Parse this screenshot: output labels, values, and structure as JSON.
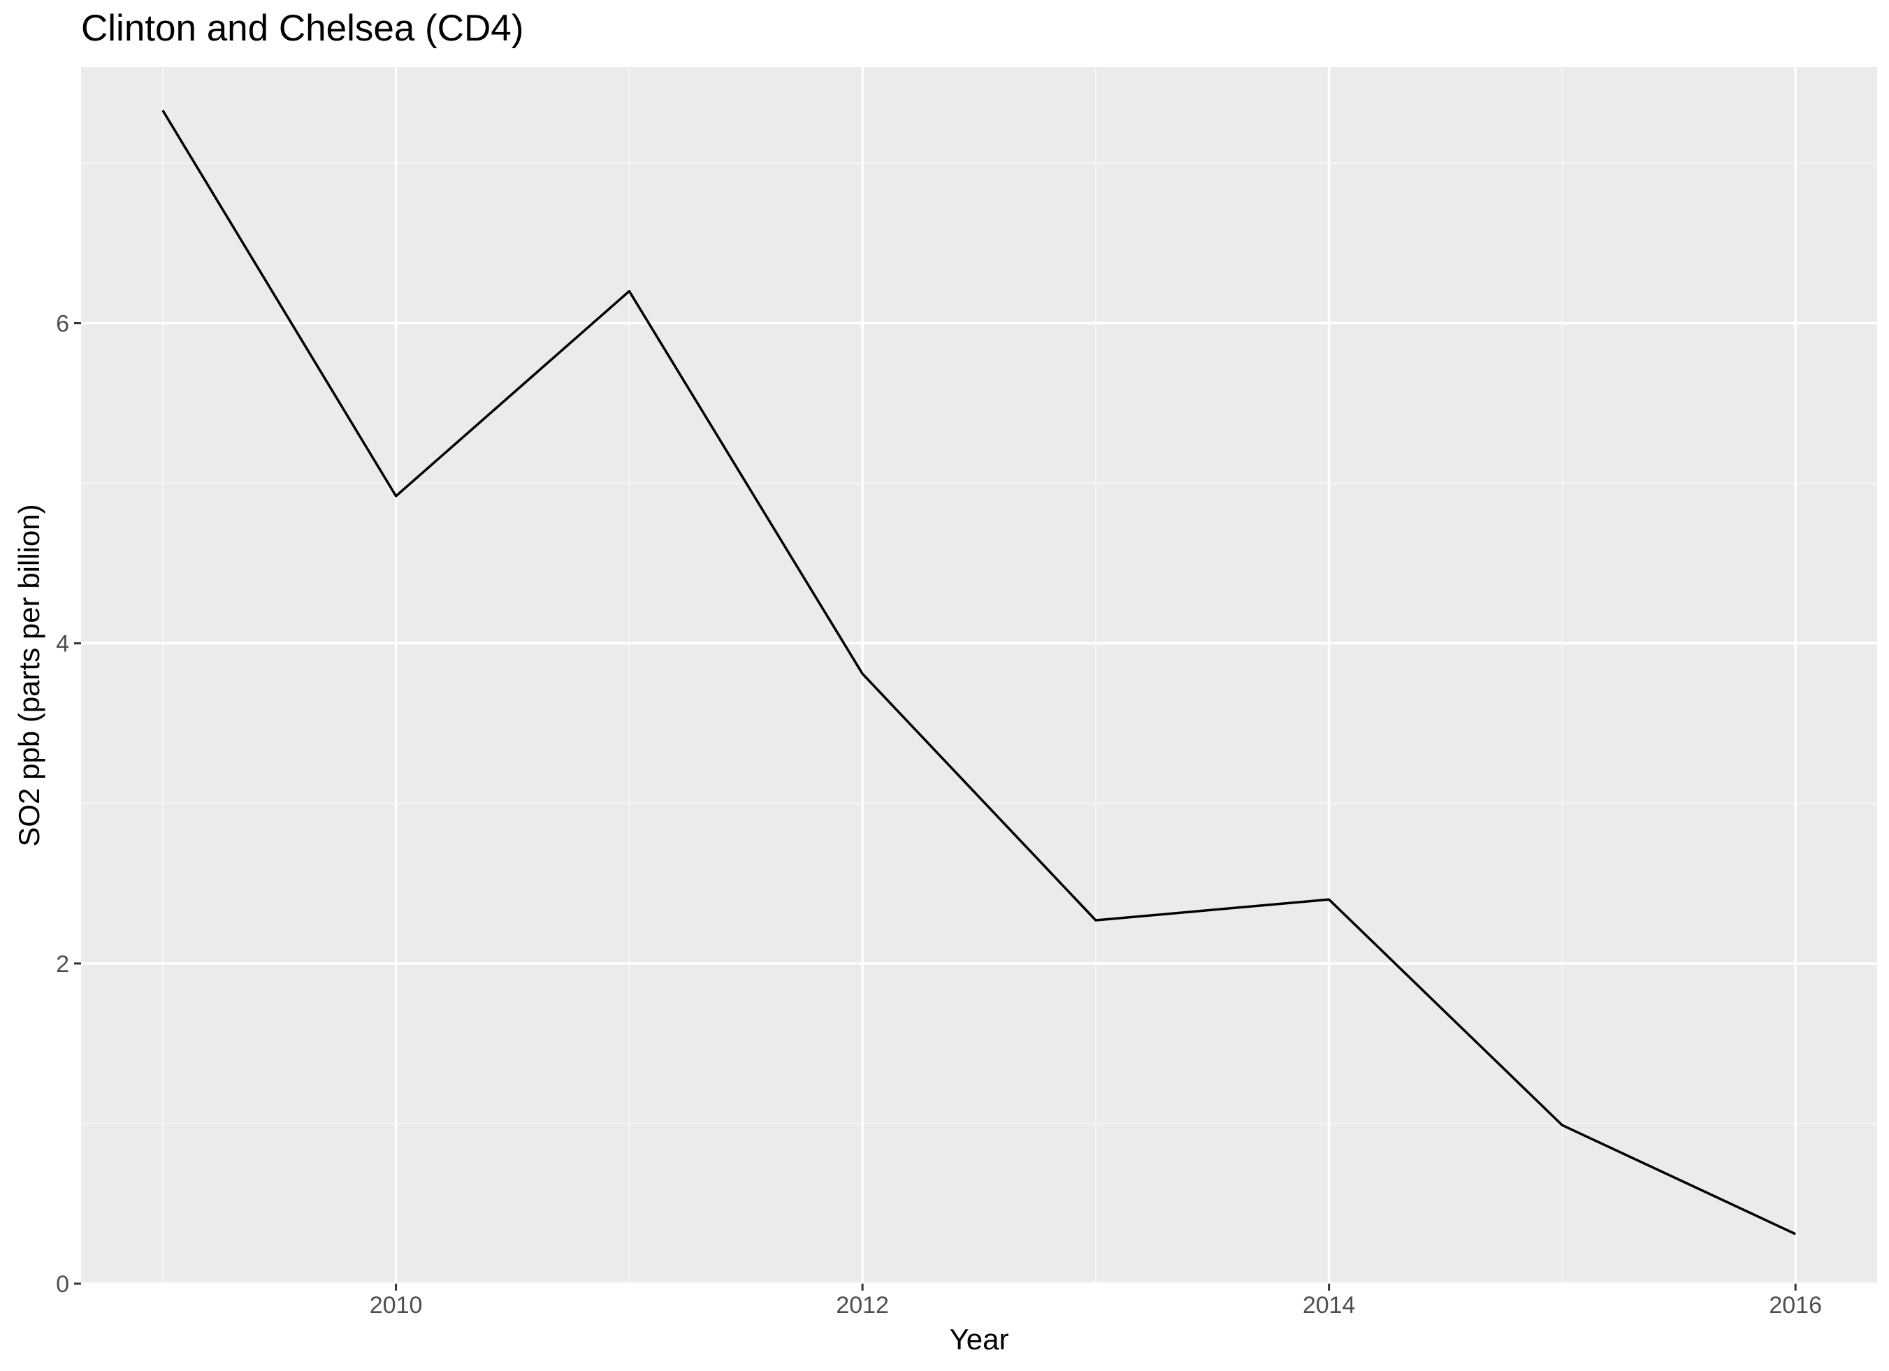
{
  "chart_data": {
    "type": "line",
    "title": "Clinton and Chelsea (CD4)",
    "xlabel": "Year",
    "ylabel": "SO2 ppb (parts per billion)",
    "x": [
      2009,
      2010,
      2011,
      2012,
      2013,
      2014,
      2015,
      2016
    ],
    "series": [
      {
        "values": [
          7.33,
          4.92,
          6.2,
          3.81,
          2.27,
          2.4,
          0.99,
          0.31
        ]
      }
    ],
    "xlim": [
      2008.65,
      2016.35
    ],
    "ylim": [
      0,
      7.6
    ],
    "x_ticks": [
      2010,
      2012,
      2014,
      2016
    ],
    "y_ticks": [
      0,
      2,
      4,
      6
    ],
    "x_tick_labels": [
      "2010",
      "2012",
      "2014",
      "2016"
    ],
    "y_tick_labels": [
      "0",
      "2",
      "4",
      "6"
    ],
    "grid": true,
    "legend": "none",
    "colors": {
      "panel_background": "#ebebeb",
      "grid_major": "#ffffff",
      "grid_minor": "#f5f5f5",
      "line": "#000000",
      "tick_label": "#4d4d4d",
      "tick_mark": "#333333"
    }
  }
}
